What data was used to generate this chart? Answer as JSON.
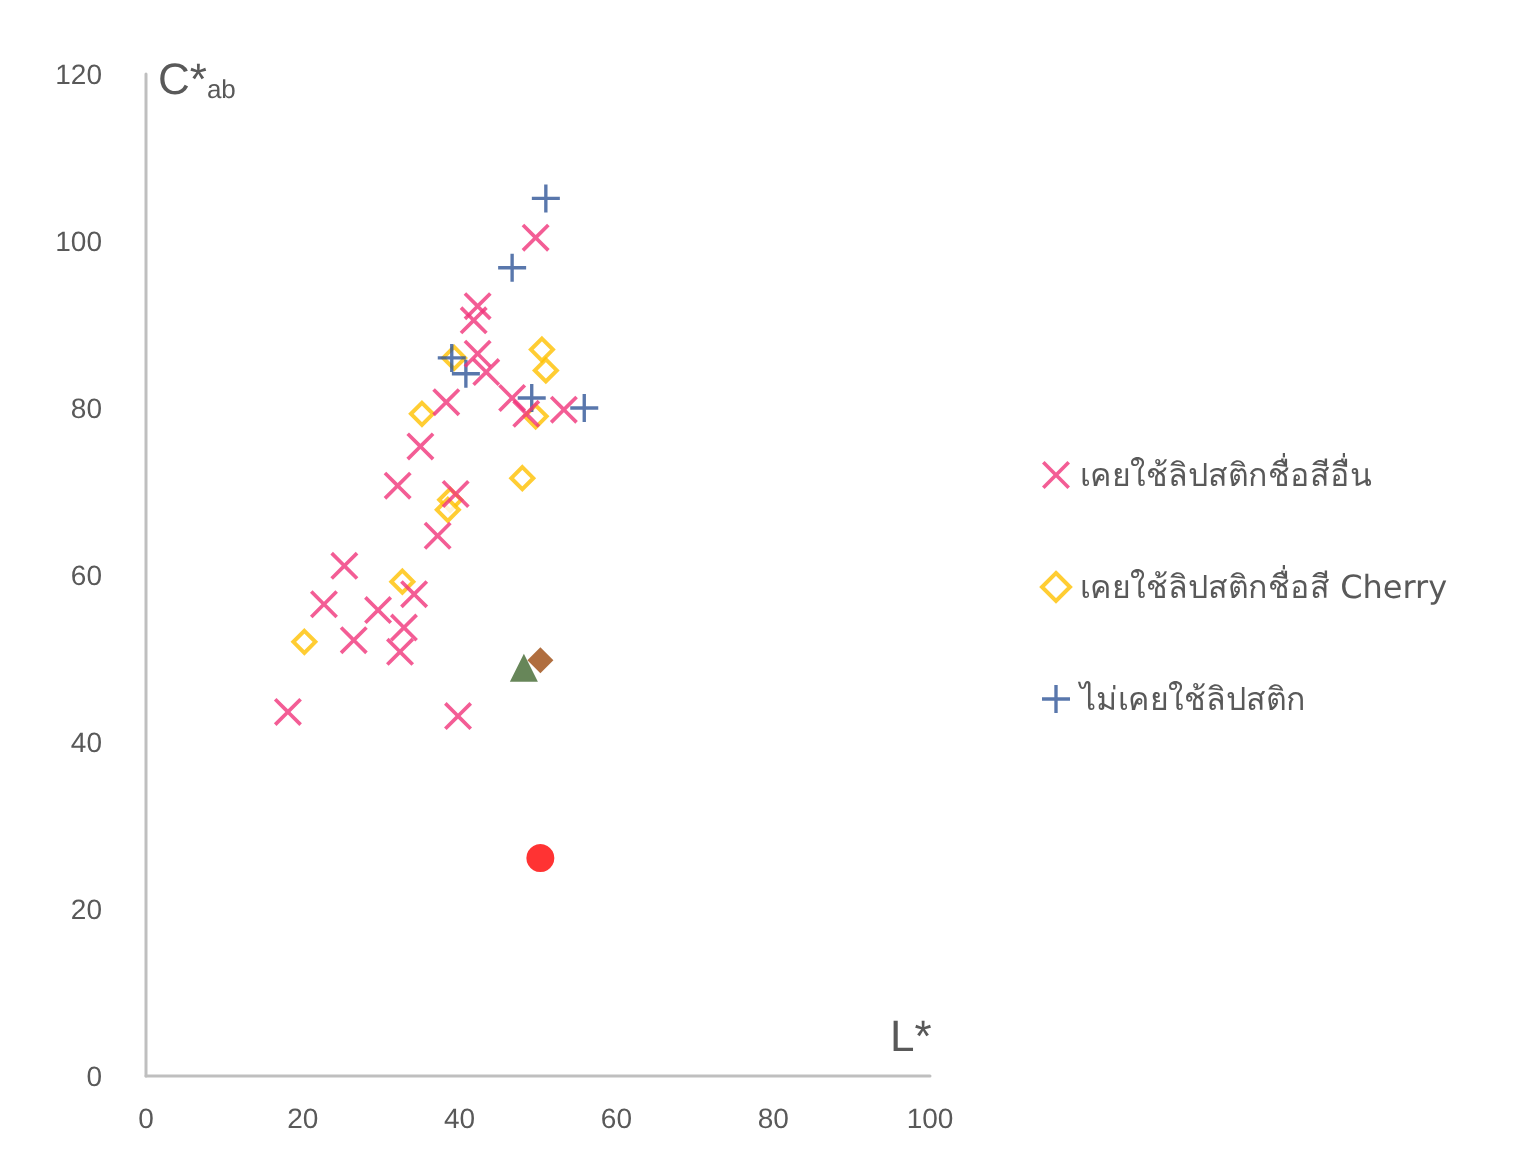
{
  "chart_data": {
    "type": "scatter",
    "xlabel": "L*",
    "ylabel": "C*$_{ab}$",
    "xlim": [
      0,
      100
    ],
    "xticks": [
      0,
      20,
      40,
      60,
      80,
      100
    ],
    "ylim": [
      0,
      120
    ],
    "yticks": [
      0,
      20,
      40,
      60,
      80,
      100,
      120
    ],
    "grid": false,
    "legend": "right",
    "series": [
      {
        "name": "เคยใช้ลิปสติกชื่อสีอื่น",
        "color": "#f0357a",
        "marker": "x",
        "x": [
          18.1,
          22.7,
          25.3,
          26.5,
          29.6,
          32.1,
          32.4,
          32.9,
          34.2,
          35.0,
          37.2,
          38.3,
          39.5,
          39.8,
          41.8,
          42.3,
          42.3,
          43.4,
          46.7,
          48.5,
          49.7,
          53.3
        ],
        "values": [
          43.6,
          56.5,
          61.1,
          52.2,
          55.8,
          70.7,
          50.8,
          53.7,
          57.7,
          75.4,
          64.7,
          80.7,
          69.7,
          43.1,
          90.5,
          92.2,
          86.5,
          84.3,
          81.2,
          79.3,
          100.4,
          79.8
        ]
      },
      {
        "name": "เคยใช้ลิปสติกชื่อสี Cherry",
        "color": "#ffc000",
        "marker": "diamond",
        "x": [
          39.3,
          50.5,
          51.0,
          35.2,
          49.7,
          48.0,
          38.8,
          38.5,
          32.7,
          20.2
        ],
        "values": [
          86.0,
          87.0,
          84.5,
          79.3,
          79.0,
          71.6,
          69.0,
          67.8,
          59.2,
          52.0
        ]
      },
      {
        "name": "ไม่เคยใช้ลิปสติก",
        "color": "#2f5597",
        "marker": "cross",
        "x": [
          51.0,
          46.7,
          39.0,
          40.8,
          49.2,
          55.9
        ],
        "values": [
          105.1,
          96.8,
          86.0,
          84.1,
          81.2,
          80.0
        ]
      },
      {
        "color": "#ff0000",
        "marker": "circle",
        "x": [
          50.3
        ],
        "values": [
          26.1
        ]
      },
      {
        "color": "#9c4a0f",
        "marker": "diamond",
        "x": [
          50.3
        ],
        "values": [
          49.8
        ]
      },
      {
        "color": "#41682f",
        "marker": "triangle",
        "x": [
          48.2
        ],
        "values": [
          48.9
        ]
      }
    ]
  }
}
